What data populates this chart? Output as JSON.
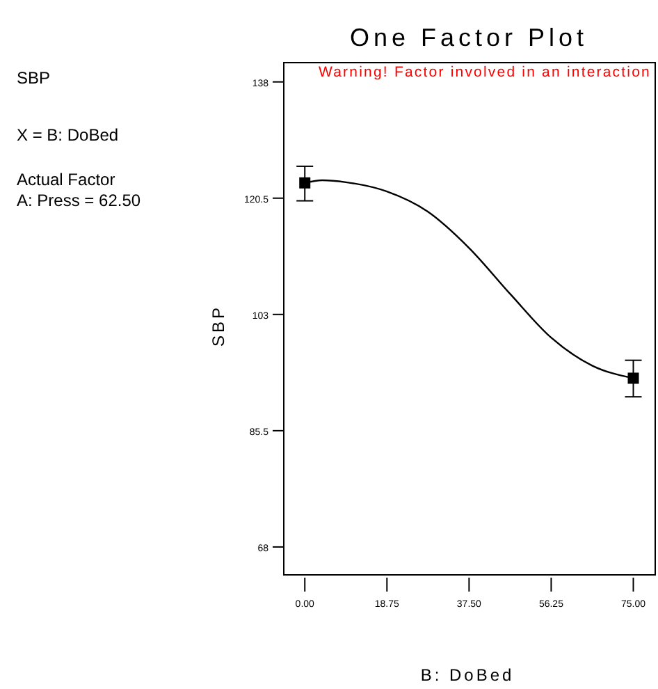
{
  "chart_data": {
    "type": "scatter",
    "title": "One Factor Plot",
    "subtitle": "Warning! Factor involved in an interaction",
    "xlabel": "B: DoBed",
    "ylabel": "SBP",
    "annotations": [
      "SBP",
      "X = B: DoBed",
      "Actual Factor\nA: Press = 62.50"
    ],
    "xlim": [
      -4.8,
      80
    ],
    "xticks": [
      {
        "value": 0,
        "label": "0.00"
      },
      {
        "value": 18.75,
        "label": "18.75"
      },
      {
        "value": 37.5,
        "label": "37.50"
      },
      {
        "value": 56.25,
        "label": "56.25"
      },
      {
        "value": 75,
        "label": "75.00"
      }
    ],
    "ylim": [
      63.8,
      140.9
    ],
    "yticks": [
      68,
      85.5,
      103,
      120.5,
      138
    ],
    "grid": false,
    "marker": "square",
    "series": [
      {
        "type": "line",
        "color": "#000000",
        "x": [
          0,
          4,
          9.4,
          18.75,
          28,
          37.5,
          47,
          56.25,
          65.6,
          75
        ],
        "values": [
          122.8,
          123.2,
          122.9,
          121.5,
          118.5,
          113,
          106,
          99.5,
          95.3,
          93.4
        ],
        "marker": "none"
      },
      {
        "color": "#000000",
        "x": [
          0,
          75
        ],
        "values": [
          122.8,
          93.4
        ],
        "errors": [
          [
            120.1,
            125.3
          ],
          [
            90.6,
            96.1
          ]
        ]
      }
    ]
  }
}
